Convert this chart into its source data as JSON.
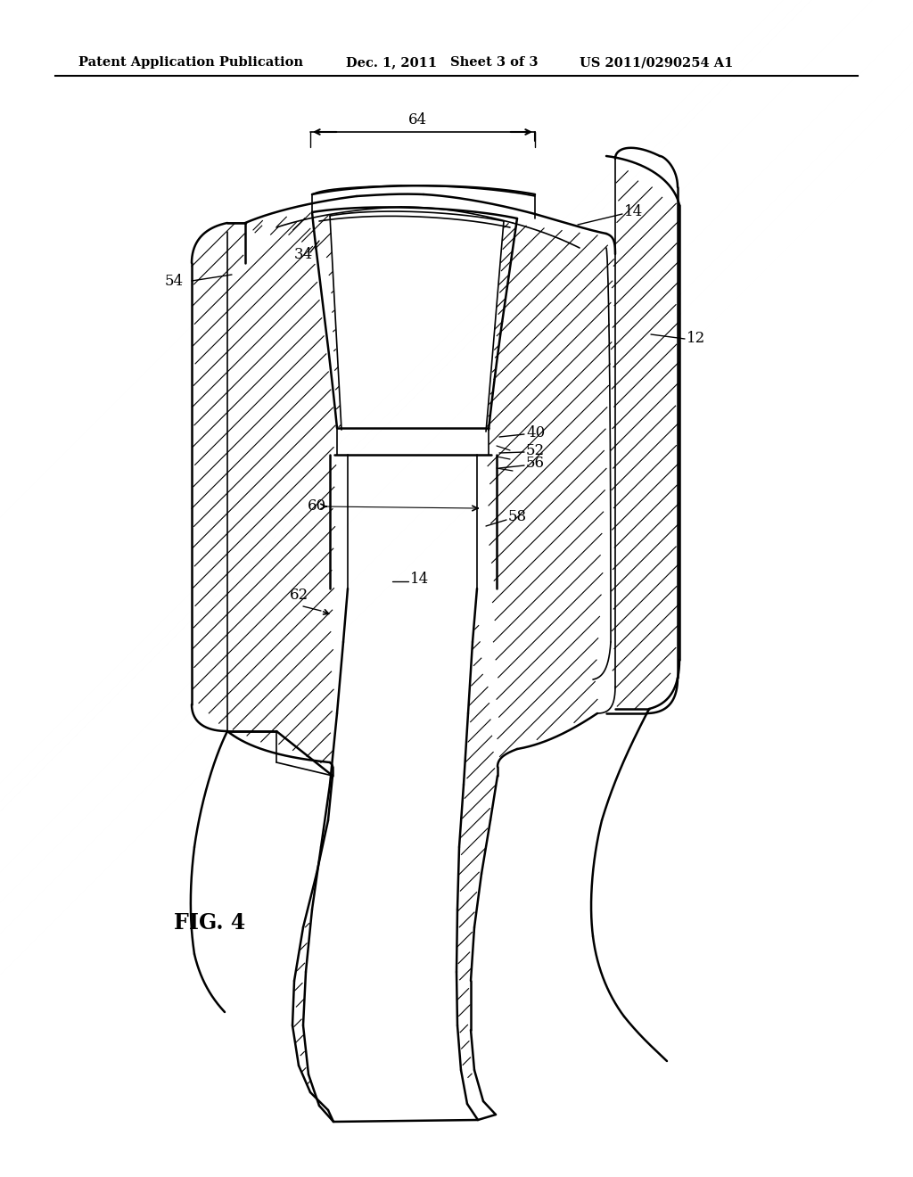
{
  "background_color": "#ffffff",
  "line_color": "#000000",
  "header_text": "Patent Application Publication",
  "header_date": "Dec. 1, 2011",
  "header_sheet": "Sheet 3 of 3",
  "header_patent": "US 2011/0290254 A1",
  "fig_label": "FIG. 4",
  "labels": [
    "12",
    "14",
    "34",
    "40",
    "52",
    "54",
    "56",
    "58",
    "60",
    "62",
    "64"
  ]
}
